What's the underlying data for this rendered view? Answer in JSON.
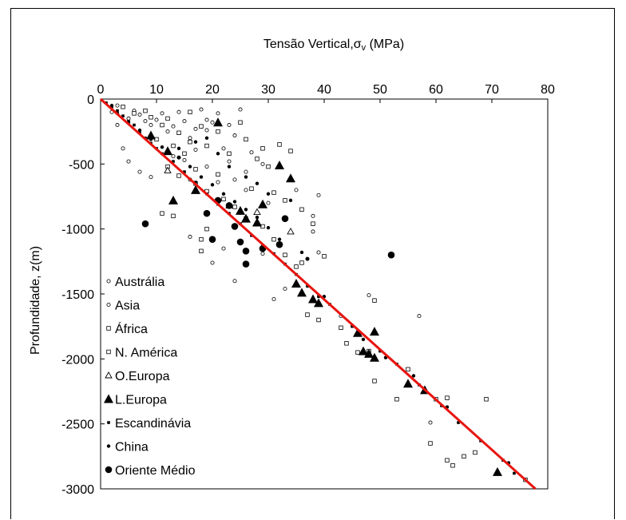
{
  "chart_data": {
    "type": "scatter",
    "title": "Tensão Vertical,σv (MPa)",
    "title_parts": {
      "main": "Tensão Vertical,",
      "sigma": "σ",
      "sub": "v",
      "unit": " (MPa)"
    },
    "xlabel": "Tensão Vertical,σv (MPa)",
    "ylabel": "Profundidade, z(m)",
    "xlim": [
      0,
      80
    ],
    "ylim": [
      -3000,
      0
    ],
    "x_axis_position": "top",
    "x_ticks": [
      0,
      10,
      20,
      30,
      40,
      50,
      60,
      70,
      80
    ],
    "y_ticks": [
      0,
      -500,
      -1000,
      -1500,
      -2000,
      -2500,
      -3000
    ],
    "grid": false,
    "legend_position": "bottom-left",
    "trend_line": {
      "color": "#e8140f",
      "points": [
        [
          0,
          0
        ],
        [
          77.8,
          -3000
        ]
      ]
    },
    "series": [
      {
        "name": "Austrália",
        "marker": "small-open-circle",
        "points": [
          [
            2,
            -100
          ],
          [
            3,
            -200
          ],
          [
            5,
            -150
          ],
          [
            7,
            -120
          ],
          [
            9,
            -200
          ],
          [
            10,
            -160
          ],
          [
            12,
            -250
          ],
          [
            14,
            -100
          ],
          [
            16,
            -300
          ],
          [
            18,
            -80
          ],
          [
            19,
            -240
          ],
          [
            20,
            -180
          ],
          [
            22,
            -380
          ],
          [
            24,
            -280
          ],
          [
            25,
            -80
          ],
          [
            14,
            -450
          ],
          [
            16,
            -620
          ],
          [
            19,
            -520
          ],
          [
            21,
            -640
          ],
          [
            23,
            -480
          ],
          [
            26,
            -560
          ],
          [
            4,
            -380
          ],
          [
            20,
            -1260
          ],
          [
            24,
            -1400
          ],
          [
            31,
            -1540
          ],
          [
            37,
            -1230
          ],
          [
            38,
            -900
          ],
          [
            39,
            -740
          ],
          [
            22,
            -1150
          ],
          [
            16,
            -1060
          ]
        ]
      },
      {
        "name": "Asia",
        "marker": "small-open-circle",
        "points": [
          [
            3,
            -50
          ],
          [
            6,
            -90
          ],
          [
            8,
            -170
          ],
          [
            11,
            -110
          ],
          [
            13,
            -210
          ],
          [
            15,
            -170
          ],
          [
            17,
            -230
          ],
          [
            19,
            -160
          ],
          [
            21,
            -110
          ],
          [
            23,
            -200
          ],
          [
            5,
            -480
          ],
          [
            7,
            -560
          ],
          [
            9,
            -600
          ],
          [
            13,
            -440
          ],
          [
            15,
            -470
          ],
          [
            17,
            -390
          ],
          [
            27,
            -410
          ],
          [
            29,
            -500
          ],
          [
            24,
            -620
          ],
          [
            26,
            -700
          ],
          [
            30,
            -800
          ],
          [
            35,
            -700
          ],
          [
            38,
            -1020
          ],
          [
            39,
            -1180
          ],
          [
            29,
            -1190
          ],
          [
            33,
            -1460
          ],
          [
            43,
            -1670
          ],
          [
            48,
            -1510
          ],
          [
            57,
            -1670
          ],
          [
            59,
            -2490
          ]
        ]
      },
      {
        "name": "África",
        "marker": "small-open-square",
        "points": [
          [
            4,
            -60
          ],
          [
            8,
            -90
          ],
          [
            12,
            -150
          ],
          [
            16,
            -100
          ],
          [
            18,
            -210
          ],
          [
            21,
            -250
          ],
          [
            25,
            -180
          ],
          [
            26,
            -310
          ],
          [
            29,
            -380
          ],
          [
            32,
            -350
          ],
          [
            34,
            -400
          ],
          [
            10,
            -310
          ],
          [
            13,
            -360
          ],
          [
            15,
            -420
          ],
          [
            17,
            -540
          ],
          [
            21,
            -580
          ],
          [
            27,
            -690
          ],
          [
            31,
            -720
          ],
          [
            33,
            -780
          ],
          [
            36,
            -850
          ],
          [
            38,
            -960
          ],
          [
            40,
            -1210
          ],
          [
            35,
            -1290
          ],
          [
            43,
            -1760
          ],
          [
            48,
            -1940
          ],
          [
            49,
            -2170
          ],
          [
            53,
            -2310
          ],
          [
            62,
            -2780
          ],
          [
            65,
            -2750
          ],
          [
            67,
            -2720
          ],
          [
            76,
            -2930
          ],
          [
            60,
            -2310
          ],
          [
            62,
            -2300
          ],
          [
            69,
            -2310
          ]
        ]
      },
      {
        "name": "N. América",
        "marker": "small-open-square",
        "points": [
          [
            6,
            -110
          ],
          [
            9,
            -140
          ],
          [
            11,
            -200
          ],
          [
            14,
            -260
          ],
          [
            16,
            -330
          ],
          [
            19,
            -360
          ],
          [
            23,
            -420
          ],
          [
            28,
            -460
          ],
          [
            30,
            -520
          ],
          [
            12,
            -520
          ],
          [
            14,
            -590
          ],
          [
            17,
            -650
          ],
          [
            19,
            -710
          ],
          [
            22,
            -770
          ],
          [
            24,
            -830
          ],
          [
            26,
            -920
          ],
          [
            29,
            -980
          ],
          [
            31,
            -1080
          ],
          [
            33,
            -1200
          ],
          [
            36,
            -1260
          ],
          [
            18,
            -1080
          ],
          [
            19,
            -1000
          ],
          [
            11,
            -880
          ],
          [
            13,
            -900
          ],
          [
            37,
            -1660
          ],
          [
            39,
            -1700
          ],
          [
            44,
            -1880
          ],
          [
            46,
            -1950
          ],
          [
            49,
            -1550
          ],
          [
            55,
            -2080
          ],
          [
            59,
            -2650
          ],
          [
            63,
            -2820
          ],
          [
            18,
            -1170
          ]
        ]
      },
      {
        "name": "O.Europa",
        "marker": "open-triangle",
        "points": [
          [
            12,
            -550
          ],
          [
            23,
            -820
          ],
          [
            28,
            -870
          ],
          [
            34,
            -1020
          ]
        ]
      },
      {
        "name": "L.Europa",
        "marker": "filled-triangle",
        "points": [
          [
            9,
            -280
          ],
          [
            12,
            -400
          ],
          [
            13,
            -780
          ],
          [
            17,
            -700
          ],
          [
            21,
            -180
          ],
          [
            25,
            -860
          ],
          [
            26,
            -920
          ],
          [
            28,
            -950
          ],
          [
            29,
            -810
          ],
          [
            32,
            -510
          ],
          [
            34,
            -610
          ],
          [
            35,
            -1420
          ],
          [
            36,
            -1490
          ],
          [
            38,
            -1540
          ],
          [
            39,
            -1570
          ],
          [
            46,
            -1800
          ],
          [
            47,
            -1940
          ],
          [
            48,
            -1960
          ],
          [
            49,
            -1790
          ],
          [
            49,
            -1990
          ],
          [
            55,
            -2190
          ],
          [
            58,
            -2240
          ],
          [
            71,
            -2870
          ]
        ]
      },
      {
        "name": "Escandinávia",
        "marker": "small-filled-square",
        "points": [
          [
            1,
            -30
          ],
          [
            2,
            -60
          ],
          [
            3,
            -90
          ],
          [
            4,
            -130
          ],
          [
            5,
            -170
          ],
          [
            6,
            -200
          ],
          [
            7,
            -260
          ],
          [
            8,
            -300
          ],
          [
            9,
            -340
          ],
          [
            10,
            -380
          ],
          [
            11,
            -420
          ],
          [
            13,
            -480
          ],
          [
            15,
            -560
          ],
          [
            17,
            -640
          ],
          [
            19,
            -730
          ],
          [
            21,
            -810
          ],
          [
            23,
            -880
          ],
          [
            25,
            -960
          ],
          [
            27,
            -1050
          ],
          [
            29,
            -1130
          ],
          [
            31,
            -1190
          ],
          [
            33,
            -1270
          ],
          [
            35,
            -1350
          ],
          [
            37,
            -1440
          ],
          [
            39,
            -1520
          ],
          [
            41,
            -1580
          ],
          [
            45,
            -1750
          ],
          [
            50,
            -1940
          ],
          [
            53,
            -2040
          ],
          [
            57,
            -2200
          ],
          [
            61,
            -2360
          ],
          [
            64,
            -2490
          ],
          [
            68,
            -2630
          ],
          [
            72,
            -2780
          ],
          [
            74,
            -2880
          ]
        ]
      },
      {
        "name": "China",
        "marker": "small-filled-circle",
        "points": [
          [
            2,
            -50
          ],
          [
            3,
            -110
          ],
          [
            5,
            -180
          ],
          [
            7,
            -240
          ],
          [
            9,
            -310
          ],
          [
            11,
            -370
          ],
          [
            14,
            -450
          ],
          [
            16,
            -520
          ],
          [
            18,
            -600
          ],
          [
            20,
            -660
          ],
          [
            22,
            -730
          ],
          [
            24,
            -790
          ],
          [
            26,
            -850
          ],
          [
            28,
            -910
          ],
          [
            30,
            -990
          ],
          [
            32,
            -1080
          ],
          [
            14,
            -380
          ],
          [
            17,
            -330
          ],
          [
            19,
            -300
          ],
          [
            21,
            -420
          ],
          [
            23,
            -520
          ],
          [
            26,
            -600
          ],
          [
            28,
            -650
          ],
          [
            30,
            -730
          ],
          [
            34,
            -780
          ],
          [
            36,
            -1180
          ],
          [
            37,
            -1230
          ],
          [
            40,
            -1520
          ],
          [
            47,
            -1850
          ],
          [
            51,
            -1990
          ],
          [
            56,
            -2130
          ],
          [
            62,
            -2370
          ],
          [
            73,
            -2800
          ]
        ]
      },
      {
        "name": "Oriente Médio",
        "marker": "filled-circle",
        "points": [
          [
            8,
            -960
          ],
          [
            19,
            -880
          ],
          [
            20,
            -1080
          ],
          [
            23,
            -820
          ],
          [
            25,
            -1100
          ],
          [
            26,
            -1170
          ],
          [
            26,
            -1270
          ],
          [
            29,
            -1150
          ],
          [
            32,
            -1120
          ],
          [
            33,
            -920
          ],
          [
            52,
            -1200
          ],
          [
            24,
            -980
          ],
          [
            21,
            -780
          ]
        ]
      }
    ]
  }
}
